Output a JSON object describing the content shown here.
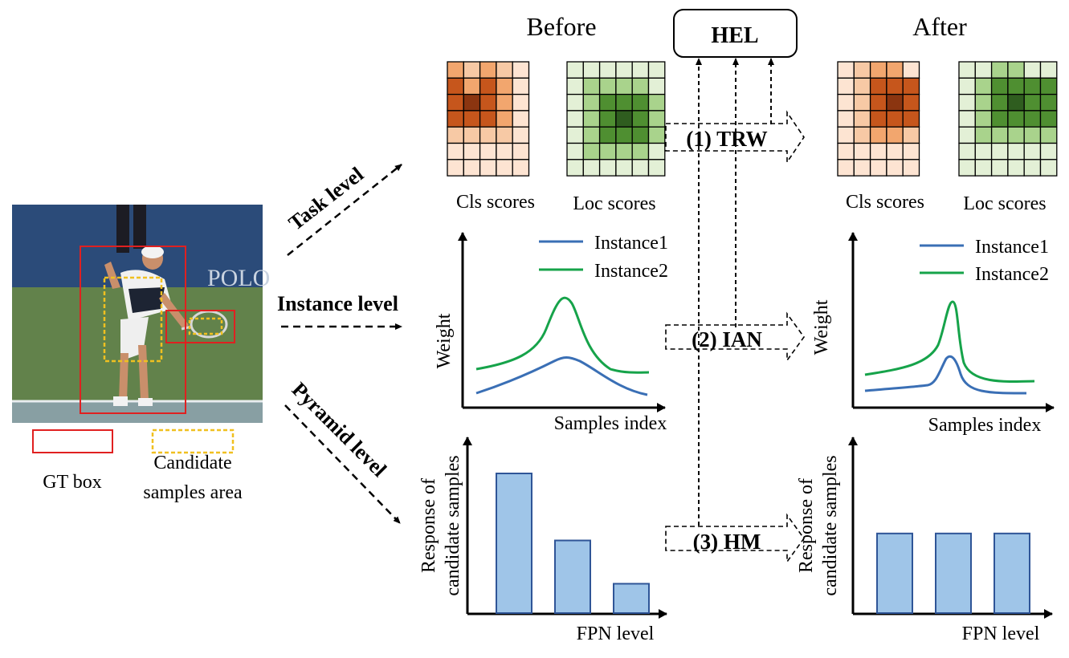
{
  "header": {
    "before": "Before",
    "after": "After",
    "hel": "HEL"
  },
  "legend_left": {
    "gt_box": "GT box",
    "candidate": [
      "Candidate",
      "samples area"
    ]
  },
  "levels": {
    "task": "Task level",
    "instance": "Instance level",
    "pyramid": "Pyramid level"
  },
  "modules": {
    "trw": "(1) TRW",
    "ian": "(2) IAN",
    "hm": "(3) HM"
  },
  "grids": {
    "cls_label": "Cls scores",
    "loc_label": "Loc scores",
    "cls_before": [
      [
        2,
        1,
        2,
        1,
        0
      ],
      [
        3,
        2,
        3,
        2,
        0
      ],
      [
        3,
        4,
        3,
        2,
        0
      ],
      [
        3,
        3,
        3,
        2,
        0
      ],
      [
        1,
        1,
        1,
        1,
        0
      ],
      [
        0,
        0,
        0,
        0,
        0
      ],
      [
        0,
        0,
        0,
        0,
        0
      ]
    ],
    "loc_before": [
      [
        0,
        0,
        0,
        0,
        0,
        0
      ],
      [
        0,
        1,
        1,
        1,
        1,
        0
      ],
      [
        0,
        1,
        2,
        2,
        2,
        1
      ],
      [
        0,
        1,
        2,
        3,
        2,
        1
      ],
      [
        0,
        1,
        2,
        2,
        2,
        1
      ],
      [
        0,
        1,
        1,
        1,
        1,
        0
      ],
      [
        0,
        0,
        0,
        0,
        0,
        0
      ]
    ],
    "cls_after": [
      [
        0,
        1,
        2,
        2,
        0
      ],
      [
        0,
        1,
        3,
        3,
        3
      ],
      [
        0,
        1,
        3,
        4,
        3
      ],
      [
        0,
        1,
        3,
        3,
        3
      ],
      [
        0,
        1,
        2,
        2,
        1
      ],
      [
        0,
        0,
        0,
        0,
        0
      ],
      [
        0,
        0,
        0,
        0,
        0
      ]
    ],
    "loc_after": [
      [
        0,
        0,
        1,
        1,
        0,
        0
      ],
      [
        0,
        1,
        2,
        2,
        2,
        2
      ],
      [
        0,
        1,
        2,
        3,
        2,
        2
      ],
      [
        0,
        1,
        2,
        2,
        2,
        2
      ],
      [
        0,
        1,
        1,
        1,
        1,
        1
      ],
      [
        0,
        0,
        0,
        0,
        0,
        0
      ],
      [
        0,
        0,
        0,
        0,
        0,
        0
      ]
    ],
    "cls_palette": [
      "#fde4d2",
      "#f7c9a5",
      "#f2a66e",
      "#c6561c",
      "#8b3510"
    ],
    "loc_palette": [
      "#e3f0d6",
      "#a9d38c",
      "#4f8f31",
      "#2f5d1f"
    ]
  },
  "weight_charts": {
    "ylabel": "Weight",
    "xlabel": "Samples index",
    "legend": [
      "Instance1",
      "Instance2"
    ],
    "colors": [
      "#3a6fb5",
      "#16a34a"
    ]
  },
  "fpn_charts": {
    "ylabel": [
      "Response of",
      "candidate samples"
    ],
    "xlabel": "FPN level",
    "before": [
      1.0,
      0.52,
      0.21
    ],
    "after": [
      0.57,
      0.57,
      0.57
    ],
    "bar_color": "#9fc5e8",
    "bar_stroke": "#2f5597"
  },
  "colors": {
    "gt_box": "#e02020",
    "candidate": "#f0c020"
  }
}
